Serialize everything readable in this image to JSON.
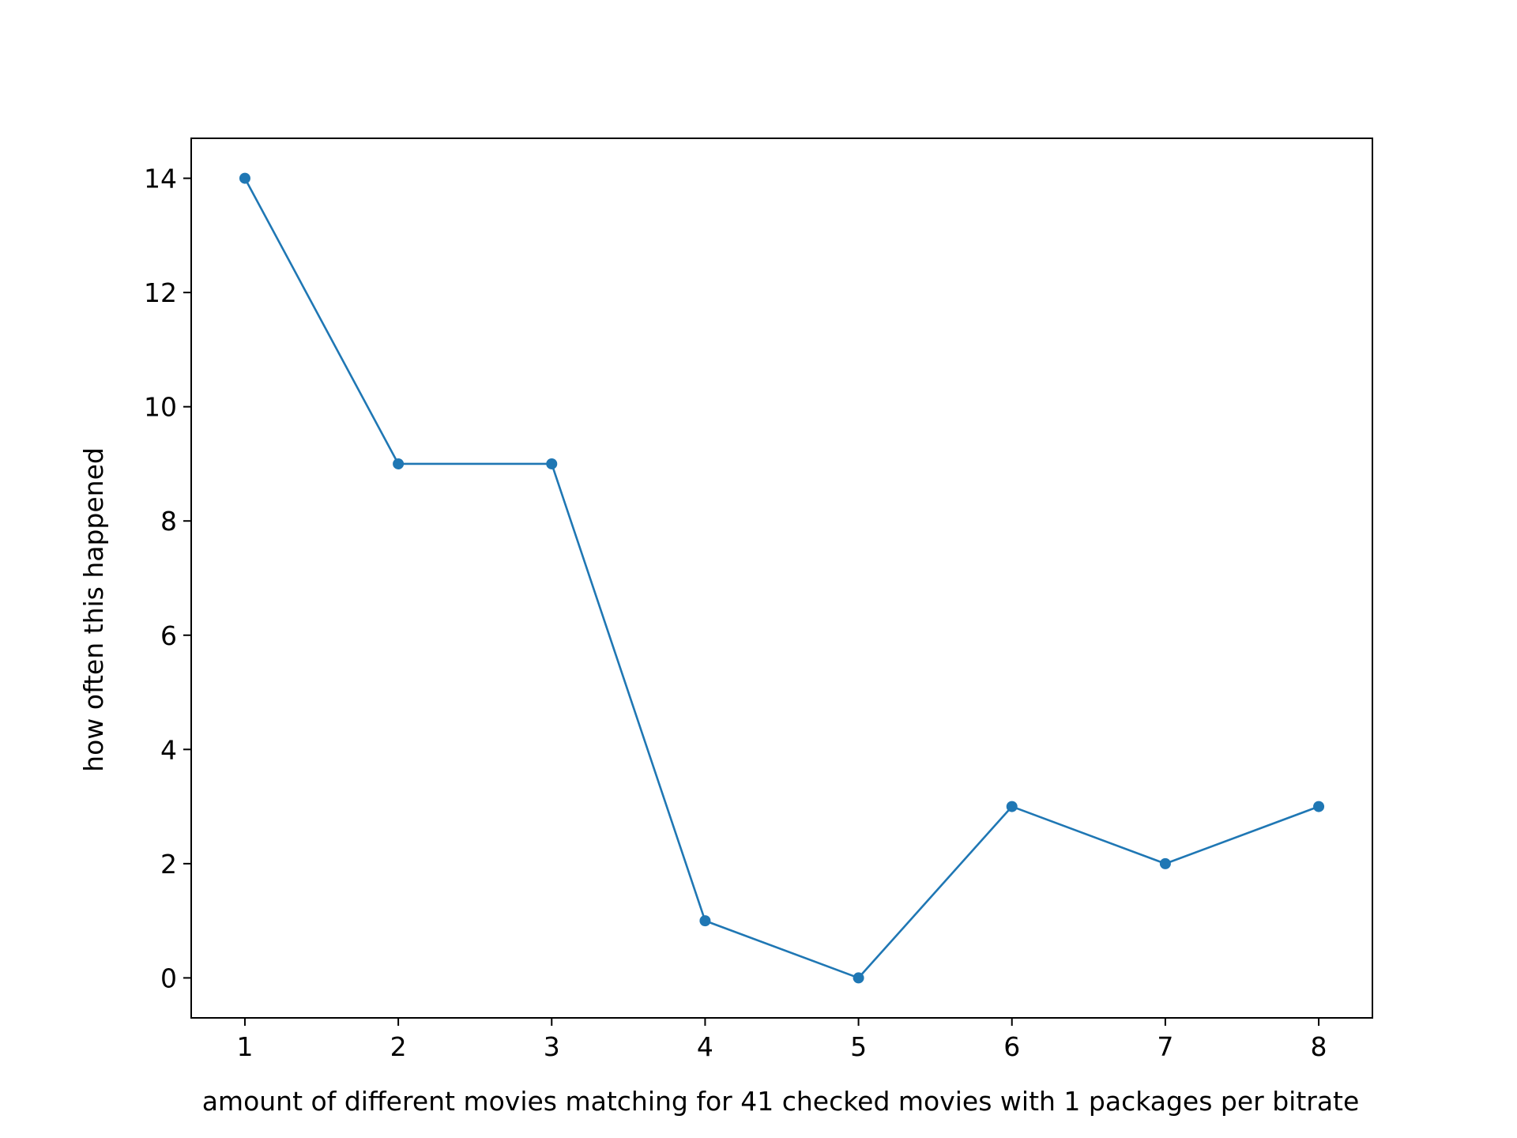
{
  "chart_data": {
    "type": "line",
    "title": "",
    "xlabel": "amount of different movies matching for 41 checked movies with 1 packages per bitrate",
    "ylabel": "how often this happened",
    "x": [
      1,
      2,
      3,
      4,
      5,
      6,
      7,
      8
    ],
    "series": [
      {
        "values": [
          14,
          9,
          9,
          1,
          0,
          3,
          2,
          3
        ],
        "color": "#1f77b4",
        "marker": "circle"
      }
    ],
    "xlim": [
      0.65,
      8.35
    ],
    "ylim": [
      -0.7,
      14.7
    ],
    "xticks": [
      "1",
      "2",
      "3",
      "4",
      "5",
      "6",
      "7",
      "8"
    ],
    "yticks": [
      "0",
      "2",
      "4",
      "6",
      "8",
      "10",
      "12",
      "14"
    ],
    "grid": false,
    "legend": "none"
  }
}
